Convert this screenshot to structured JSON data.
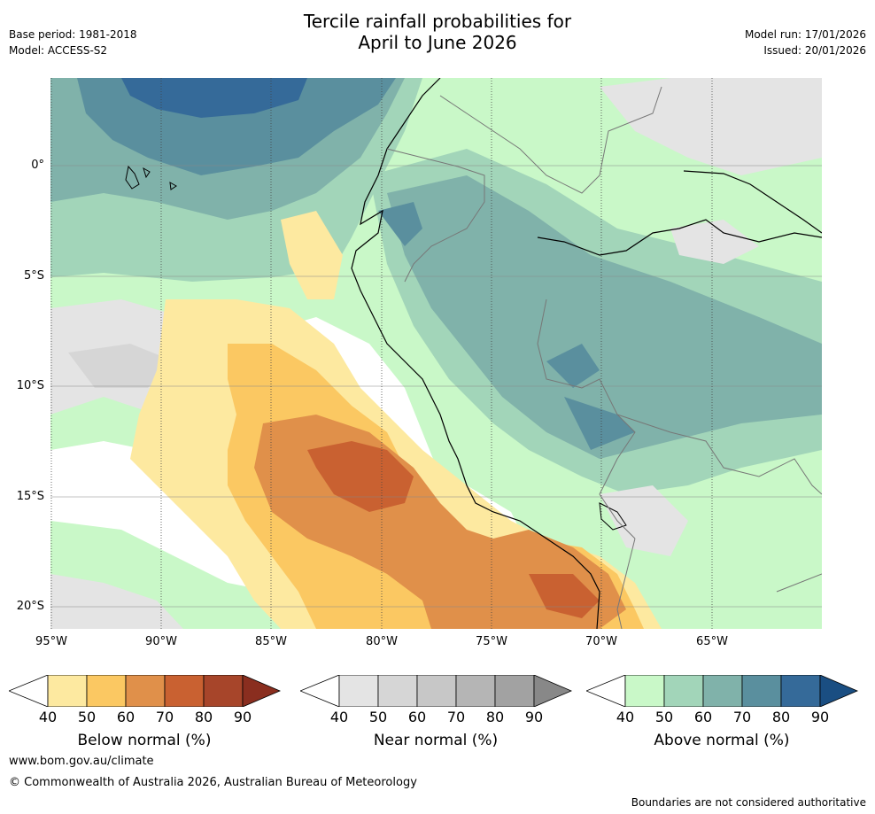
{
  "header": {
    "title_line1": "Tercile rainfall probabilities for",
    "title_line2": "April to June 2026",
    "base_period": "Base period: 1981-2018",
    "model": "Model: ACCESS-S2",
    "model_run": "Model run: 17/01/2026",
    "issued": "Issued: 20/01/2026"
  },
  "map": {
    "lat_labels": [
      "0°",
      "5°S",
      "10°S",
      "15°S",
      "20°S"
    ],
    "lon_labels": [
      "95°W",
      "90°W",
      "85°W",
      "80°W",
      "75°W",
      "70°W",
      "65°W"
    ]
  },
  "colorbars": [
    {
      "title": "Below normal (%)",
      "ticks": [
        "40",
        "50",
        "60",
        "70",
        "80",
        "90"
      ],
      "colors": [
        "#ffffff",
        "#fde9a0",
        "#fbc862",
        "#e0904a",
        "#c96131",
        "#a7452a",
        "#8a2e1f"
      ]
    },
    {
      "title": "Near normal (%)",
      "ticks": [
        "40",
        "50",
        "60",
        "70",
        "80",
        "90"
      ],
      "colors": [
        "#ffffff",
        "#e4e4e4",
        "#d6d6d6",
        "#c7c7c7",
        "#b5b5b5",
        "#a2a2a2",
        "#888888"
      ]
    },
    {
      "title": "Above normal (%)",
      "ticks": [
        "40",
        "50",
        "60",
        "70",
        "80",
        "90"
      ],
      "colors": [
        "#ffffff",
        "#c9f8c8",
        "#a2d5b9",
        "#80b2aa",
        "#5a8f9e",
        "#356a99",
        "#1a4e82"
      ]
    }
  ],
  "footer": {
    "website": "www.bom.gov.au/climate",
    "copyright": "© Commonwealth of Australia 2026, Australian Bureau of Meteorology",
    "disclaimer": "Boundaries are not considered authoritative"
  }
}
